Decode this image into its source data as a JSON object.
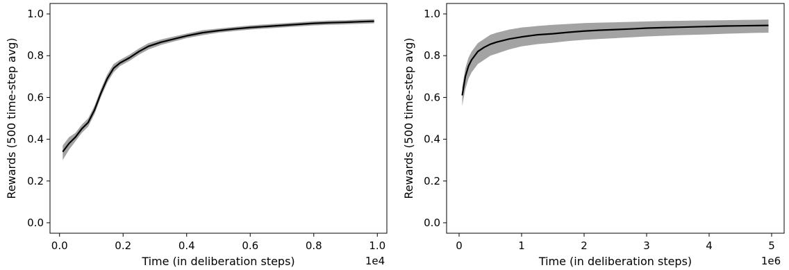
{
  "chart_data": [
    {
      "type": "line",
      "xlabel": "Time (in deliberation steps)",
      "ylabel": "Rewards (500 time-step avg)",
      "x_offset_label": "1e4",
      "xlim": [
        -0.03,
        1.03
      ],
      "ylim": [
        -0.05,
        1.05
      ],
      "xticks": [
        0.0,
        0.2,
        0.4,
        0.6,
        0.8,
        1.0
      ],
      "xtick_labels": [
        "0.0",
        "0.2",
        "0.4",
        "0.6",
        "0.8",
        "1.0"
      ],
      "yticks": [
        0.0,
        0.2,
        0.4,
        0.6,
        0.8,
        1.0
      ],
      "ytick_labels": [
        "0.0",
        "0.2",
        "0.4",
        "0.6",
        "0.8",
        "1.0"
      ],
      "grid": false,
      "line_color": "#000000",
      "band_color": "#999999",
      "series": [
        {
          "x": [
            0.01,
            0.03,
            0.05,
            0.07,
            0.09,
            0.11,
            0.13,
            0.15,
            0.17,
            0.19,
            0.22,
            0.25,
            0.28,
            0.32,
            0.36,
            0.4,
            0.45,
            0.5,
            0.55,
            0.6,
            0.65,
            0.7,
            0.75,
            0.8,
            0.85,
            0.9,
            0.95,
            0.99
          ],
          "y": [
            0.34,
            0.38,
            0.41,
            0.45,
            0.48,
            0.54,
            0.62,
            0.69,
            0.74,
            0.765,
            0.79,
            0.82,
            0.845,
            0.865,
            0.88,
            0.895,
            0.91,
            0.92,
            0.928,
            0.935,
            0.94,
            0.945,
            0.95,
            0.955,
            0.958,
            0.96,
            0.963,
            0.965
          ],
          "lower": [
            0.3,
            0.35,
            0.39,
            0.43,
            0.46,
            0.52,
            0.6,
            0.67,
            0.72,
            0.75,
            0.775,
            0.805,
            0.83,
            0.852,
            0.868,
            0.884,
            0.898,
            0.91,
            0.918,
            0.925,
            0.93,
            0.935,
            0.94,
            0.945,
            0.948,
            0.95,
            0.953,
            0.955
          ],
          "upper": [
            0.37,
            0.41,
            0.43,
            0.47,
            0.5,
            0.56,
            0.64,
            0.71,
            0.76,
            0.78,
            0.805,
            0.835,
            0.86,
            0.878,
            0.892,
            0.906,
            0.922,
            0.93,
            0.938,
            0.945,
            0.95,
            0.955,
            0.96,
            0.965,
            0.968,
            0.97,
            0.973,
            0.975
          ]
        }
      ]
    },
    {
      "type": "line",
      "xlabel": "Time (in deliberation steps)",
      "ylabel": "Rewards (500 time-step avg)",
      "x_offset_label": "1e6",
      "xlim": [
        -0.2,
        5.2
      ],
      "ylim": [
        -0.05,
        1.05
      ],
      "xticks": [
        0,
        1,
        2,
        3,
        4,
        5
      ],
      "xtick_labels": [
        "0",
        "1",
        "2",
        "3",
        "4",
        "5"
      ],
      "yticks": [
        0.0,
        0.2,
        0.4,
        0.6,
        0.8,
        1.0
      ],
      "ytick_labels": [
        "0.0",
        "0.2",
        "0.4",
        "0.6",
        "0.8",
        "1.0"
      ],
      "grid": false,
      "line_color": "#000000",
      "band_color": "#999999",
      "series": [
        {
          "x": [
            0.05,
            0.1,
            0.15,
            0.2,
            0.3,
            0.4,
            0.5,
            0.6,
            0.8,
            1.0,
            1.25,
            1.5,
            1.75,
            2.0,
            2.25,
            2.5,
            2.75,
            3.0,
            3.25,
            3.5,
            3.75,
            4.0,
            4.25,
            4.5,
            4.75,
            4.95
          ],
          "y": [
            0.61,
            0.7,
            0.75,
            0.78,
            0.82,
            0.84,
            0.855,
            0.865,
            0.88,
            0.89,
            0.9,
            0.905,
            0.912,
            0.918,
            0.922,
            0.925,
            0.928,
            0.932,
            0.934,
            0.936,
            0.938,
            0.94,
            0.942,
            0.943,
            0.944,
            0.945
          ],
          "lower": [
            0.56,
            0.64,
            0.69,
            0.72,
            0.76,
            0.78,
            0.8,
            0.81,
            0.83,
            0.845,
            0.855,
            0.862,
            0.87,
            0.876,
            0.88,
            0.884,
            0.888,
            0.892,
            0.895,
            0.898,
            0.9,
            0.902,
            0.905,
            0.907,
            0.909,
            0.91
          ],
          "upper": [
            0.65,
            0.74,
            0.79,
            0.82,
            0.86,
            0.88,
            0.9,
            0.91,
            0.925,
            0.935,
            0.942,
            0.948,
            0.952,
            0.956,
            0.958,
            0.96,
            0.962,
            0.964,
            0.966,
            0.967,
            0.968,
            0.969,
            0.97,
            0.971,
            0.972,
            0.973
          ]
        }
      ]
    }
  ]
}
